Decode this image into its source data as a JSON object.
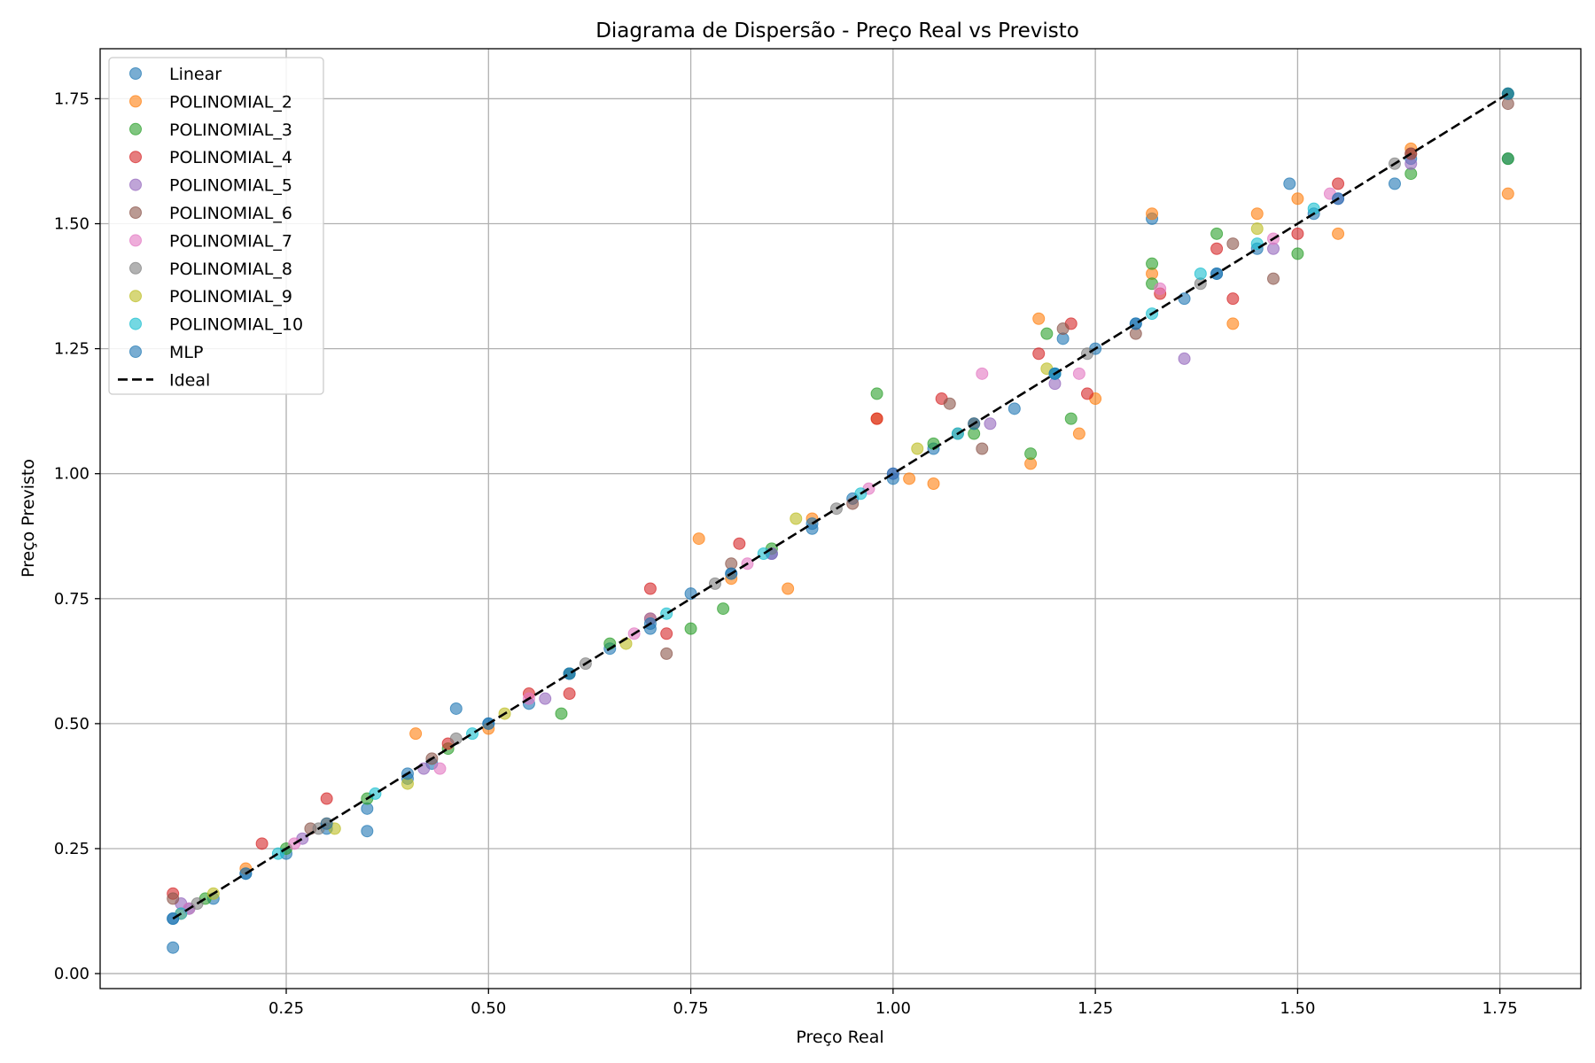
{
  "chart_data": {
    "type": "scatter",
    "title": "Diagrama de Dispersão - Preço Real vs Previsto",
    "xlabel": "Preço Real",
    "ylabel": "Preço Previsto",
    "xlim": [
      0.02,
      1.85
    ],
    "ylim": [
      -0.03,
      1.85
    ],
    "x_ticks": [
      0.25,
      0.5,
      0.75,
      1.0,
      1.25,
      1.5,
      1.75
    ],
    "x_tick_labels": [
      "0.25",
      "0.50",
      "0.75",
      "1.00",
      "1.25",
      "1.50",
      "1.75"
    ],
    "y_ticks": [
      0.0,
      0.25,
      0.5,
      0.75,
      1.0,
      1.25,
      1.5,
      1.75
    ],
    "y_tick_labels": [
      "0.00",
      "0.25",
      "0.50",
      "0.75",
      "1.00",
      "1.25",
      "1.50",
      "1.75"
    ],
    "grid": true,
    "legend_position": "top-left",
    "series": [
      {
        "name": "Linear",
        "color": "#1f77b4",
        "points": [
          [
            0.11,
            0.11
          ],
          [
            0.11,
            0.052
          ],
          [
            0.13,
            0.13
          ],
          [
            0.16,
            0.15
          ],
          [
            0.2,
            0.2
          ],
          [
            0.25,
            0.24
          ],
          [
            0.3,
            0.29
          ],
          [
            0.35,
            0.33
          ],
          [
            0.35,
            0.285
          ],
          [
            0.4,
            0.39
          ],
          [
            0.43,
            0.42
          ],
          [
            0.46,
            0.53
          ],
          [
            0.5,
            0.5
          ],
          [
            0.55,
            0.54
          ],
          [
            0.6,
            0.6
          ],
          [
            0.65,
            0.65
          ],
          [
            0.7,
            0.69
          ],
          [
            0.75,
            0.76
          ],
          [
            0.8,
            0.8
          ],
          [
            0.85,
            0.84
          ],
          [
            0.9,
            0.89
          ],
          [
            0.95,
            0.95
          ],
          [
            1.0,
            0.99
          ],
          [
            1.05,
            1.05
          ],
          [
            1.1,
            1.1
          ],
          [
            1.15,
            1.13
          ],
          [
            1.2,
            1.2
          ],
          [
            1.21,
            1.27
          ],
          [
            1.25,
            1.25
          ],
          [
            1.3,
            1.3
          ],
          [
            1.32,
            1.51
          ],
          [
            1.36,
            1.35
          ],
          [
            1.4,
            1.4
          ],
          [
            1.45,
            1.45
          ],
          [
            1.49,
            1.58
          ],
          [
            1.52,
            1.52
          ],
          [
            1.62,
            1.58
          ],
          [
            1.64,
            1.63
          ],
          [
            1.76,
            1.76
          ],
          [
            1.76,
            1.63
          ]
        ]
      },
      {
        "name": "POLINOMIAL_2",
        "color": "#ff7f0e",
        "points": [
          [
            0.12,
            0.12
          ],
          [
            0.2,
            0.21
          ],
          [
            0.3,
            0.3
          ],
          [
            0.41,
            0.48
          ],
          [
            0.5,
            0.49
          ],
          [
            0.6,
            0.6
          ],
          [
            0.7,
            0.71
          ],
          [
            0.76,
            0.87
          ],
          [
            0.8,
            0.79
          ],
          [
            0.87,
            0.77
          ],
          [
            0.9,
            0.91
          ],
          [
            0.98,
            1.11
          ],
          [
            1.02,
            0.99
          ],
          [
            1.05,
            0.98
          ],
          [
            1.1,
            1.1
          ],
          [
            1.17,
            1.02
          ],
          [
            1.18,
            1.31
          ],
          [
            1.23,
            1.08
          ],
          [
            1.25,
            1.15
          ],
          [
            1.32,
            1.4
          ],
          [
            1.32,
            1.52
          ],
          [
            1.42,
            1.3
          ],
          [
            1.45,
            1.52
          ],
          [
            1.5,
            1.55
          ],
          [
            1.55,
            1.48
          ],
          [
            1.64,
            1.65
          ],
          [
            1.76,
            1.56
          ]
        ]
      },
      {
        "name": "POLINOMIAL_3",
        "color": "#2ca02c",
        "points": [
          [
            0.15,
            0.15
          ],
          [
            0.25,
            0.25
          ],
          [
            0.35,
            0.35
          ],
          [
            0.45,
            0.45
          ],
          [
            0.59,
            0.52
          ],
          [
            0.65,
            0.66
          ],
          [
            0.75,
            0.69
          ],
          [
            0.79,
            0.73
          ],
          [
            0.85,
            0.85
          ],
          [
            0.98,
            1.16
          ],
          [
            1.05,
            1.06
          ],
          [
            1.1,
            1.08
          ],
          [
            1.17,
            1.04
          ],
          [
            1.19,
            1.28
          ],
          [
            1.22,
            1.11
          ],
          [
            1.32,
            1.42
          ],
          [
            1.32,
            1.38
          ],
          [
            1.4,
            1.48
          ],
          [
            1.5,
            1.44
          ],
          [
            1.64,
            1.6
          ],
          [
            1.76,
            1.63
          ],
          [
            1.76,
            1.76
          ]
        ]
      },
      {
        "name": "POLINOMIAL_4",
        "color": "#d62728",
        "points": [
          [
            0.11,
            0.16
          ],
          [
            0.22,
            0.26
          ],
          [
            0.3,
            0.35
          ],
          [
            0.45,
            0.46
          ],
          [
            0.55,
            0.56
          ],
          [
            0.6,
            0.56
          ],
          [
            0.7,
            0.77
          ],
          [
            0.72,
            0.68
          ],
          [
            0.81,
            0.86
          ],
          [
            0.98,
            1.11
          ],
          [
            1.06,
            1.15
          ],
          [
            1.18,
            1.24
          ],
          [
            1.22,
            1.3
          ],
          [
            1.24,
            1.16
          ],
          [
            1.33,
            1.36
          ],
          [
            1.4,
            1.45
          ],
          [
            1.42,
            1.35
          ],
          [
            1.5,
            1.48
          ],
          [
            1.55,
            1.58
          ],
          [
            1.64,
            1.64
          ]
        ]
      },
      {
        "name": "POLINOMIAL_5",
        "color": "#9467bd",
        "points": [
          [
            0.12,
            0.14
          ],
          [
            0.27,
            0.27
          ],
          [
            0.42,
            0.41
          ],
          [
            0.57,
            0.55
          ],
          [
            0.7,
            0.71
          ],
          [
            0.85,
            0.84
          ],
          [
            1.0,
            1.0
          ],
          [
            1.12,
            1.1
          ],
          [
            1.2,
            1.18
          ],
          [
            1.36,
            1.23
          ],
          [
            1.47,
            1.45
          ],
          [
            1.55,
            1.55
          ],
          [
            1.64,
            1.62
          ]
        ]
      },
      {
        "name": "POLINOMIAL_6",
        "color": "#8c564b",
        "points": [
          [
            0.11,
            0.15
          ],
          [
            0.28,
            0.29
          ],
          [
            0.43,
            0.43
          ],
          [
            0.6,
            0.6
          ],
          [
            0.72,
            0.64
          ],
          [
            0.8,
            0.82
          ],
          [
            0.95,
            0.94
          ],
          [
            1.07,
            1.14
          ],
          [
            1.11,
            1.05
          ],
          [
            1.21,
            1.29
          ],
          [
            1.3,
            1.28
          ],
          [
            1.42,
            1.46
          ],
          [
            1.47,
            1.39
          ],
          [
            1.64,
            1.64
          ],
          [
            1.76,
            1.74
          ]
        ]
      },
      {
        "name": "POLINOMIAL_7",
        "color": "#e377c2",
        "points": [
          [
            0.13,
            0.13
          ],
          [
            0.26,
            0.26
          ],
          [
            0.44,
            0.41
          ],
          [
            0.55,
            0.55
          ],
          [
            0.68,
            0.68
          ],
          [
            0.82,
            0.82
          ],
          [
            0.97,
            0.97
          ],
          [
            1.11,
            1.2
          ],
          [
            1.23,
            1.2
          ],
          [
            1.33,
            1.37
          ],
          [
            1.47,
            1.47
          ],
          [
            1.54,
            1.56
          ]
        ]
      },
      {
        "name": "POLINOMIAL_8",
        "color": "#7f7f7f",
        "points": [
          [
            0.14,
            0.14
          ],
          [
            0.29,
            0.29
          ],
          [
            0.46,
            0.47
          ],
          [
            0.62,
            0.62
          ],
          [
            0.78,
            0.78
          ],
          [
            0.93,
            0.93
          ],
          [
            1.08,
            1.08
          ],
          [
            1.24,
            1.24
          ],
          [
            1.38,
            1.38
          ],
          [
            1.62,
            1.62
          ]
        ]
      },
      {
        "name": "POLINOMIAL_9",
        "color": "#bcbd22",
        "points": [
          [
            0.16,
            0.16
          ],
          [
            0.31,
            0.29
          ],
          [
            0.4,
            0.38
          ],
          [
            0.52,
            0.52
          ],
          [
            0.67,
            0.66
          ],
          [
            0.88,
            0.91
          ],
          [
            1.03,
            1.05
          ],
          [
            1.19,
            1.21
          ],
          [
            1.45,
            1.49
          ]
        ]
      },
      {
        "name": "POLINOMIAL_10",
        "color": "#17becf",
        "points": [
          [
            0.12,
            0.12
          ],
          [
            0.24,
            0.24
          ],
          [
            0.36,
            0.36
          ],
          [
            0.48,
            0.48
          ],
          [
            0.6,
            0.6
          ],
          [
            0.72,
            0.72
          ],
          [
            0.84,
            0.84
          ],
          [
            0.96,
            0.96
          ],
          [
            1.08,
            1.08
          ],
          [
            1.2,
            1.2
          ],
          [
            1.32,
            1.32
          ],
          [
            1.38,
            1.4
          ],
          [
            1.45,
            1.46
          ],
          [
            1.52,
            1.53
          ]
        ]
      },
      {
        "name": "MLP",
        "color": "#1f77b4",
        "points": [
          [
            0.11,
            0.11
          ],
          [
            0.2,
            0.2
          ],
          [
            0.3,
            0.3
          ],
          [
            0.4,
            0.4
          ],
          [
            0.5,
            0.5
          ],
          [
            0.6,
            0.6
          ],
          [
            0.7,
            0.7
          ],
          [
            0.8,
            0.8
          ],
          [
            0.9,
            0.9
          ],
          [
            1.0,
            1.0
          ],
          [
            1.1,
            1.1
          ],
          [
            1.2,
            1.2
          ],
          [
            1.3,
            1.3
          ],
          [
            1.4,
            1.4
          ],
          [
            1.55,
            1.55
          ],
          [
            1.76,
            1.76
          ]
        ]
      }
    ],
    "ideal_line": {
      "name": "Ideal",
      "color": "#000000",
      "from": [
        0.11,
        0.11
      ],
      "to": [
        1.76,
        1.76
      ]
    }
  }
}
